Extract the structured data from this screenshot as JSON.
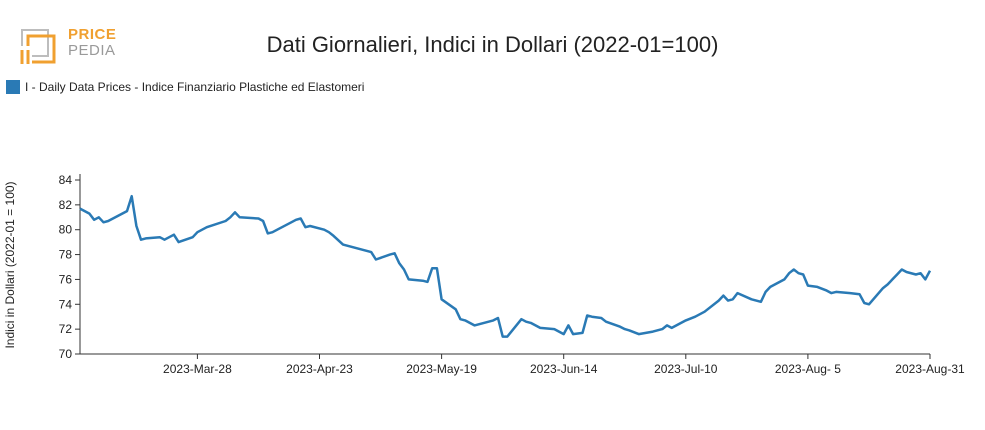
{
  "logo": {
    "line1": "PRICE",
    "line2": "PEDIA"
  },
  "colors": {
    "series": "#2a7ab5",
    "logo_orange": "#f0a030",
    "logo_gray": "#9a9a9a"
  },
  "chart_data": {
    "type": "line",
    "title": "Dati Giornalieri, Indici in Dollari (2022-01=100)",
    "xlabel": "",
    "ylabel": "Indici in Dollari (2022-01 = 100)",
    "ylim": [
      70,
      84
    ],
    "y_ticks": [
      70,
      72,
      74,
      76,
      78,
      80,
      82,
      84
    ],
    "x_range": [
      "2023-03-03",
      "2023-08-31"
    ],
    "x_ticks": [
      {
        "date": "2023-03-28",
        "label": "2023-Mar-28"
      },
      {
        "date": "2023-04-23",
        "label": "2023-Apr-23"
      },
      {
        "date": "2023-05-19",
        "label": "2023-May-19"
      },
      {
        "date": "2023-06-14",
        "label": "2023-Jun-14"
      },
      {
        "date": "2023-07-10",
        "label": "2023-Jul-10"
      },
      {
        "date": "2023-08-05",
        "label": "2023-Aug- 5"
      },
      {
        "date": "2023-08-31",
        "label": "2023-Aug-31"
      }
    ],
    "grid": false,
    "legend_position": "top-left",
    "series": [
      {
        "name": "I - Daily Data Prices - Indice Finanziario Plastiche ed Elastomeri",
        "points": [
          [
            "2023-03-03",
            81.7
          ],
          [
            "2023-03-05",
            81.3
          ],
          [
            "2023-03-06",
            80.8
          ],
          [
            "2023-03-07",
            81.0
          ],
          [
            "2023-03-08",
            80.6
          ],
          [
            "2023-03-09",
            80.7
          ],
          [
            "2023-03-13",
            81.5
          ],
          [
            "2023-03-14",
            82.7
          ],
          [
            "2023-03-15",
            80.3
          ],
          [
            "2023-03-16",
            79.2
          ],
          [
            "2023-03-17",
            79.3
          ],
          [
            "2023-03-20",
            79.4
          ],
          [
            "2023-03-21",
            79.2
          ],
          [
            "2023-03-23",
            79.6
          ],
          [
            "2023-03-24",
            79.0
          ],
          [
            "2023-03-27",
            79.4
          ],
          [
            "2023-03-28",
            79.8
          ],
          [
            "2023-03-30",
            80.2
          ],
          [
            "2023-04-03",
            80.7
          ],
          [
            "2023-04-04",
            81.0
          ],
          [
            "2023-04-05",
            81.4
          ],
          [
            "2023-04-06",
            81.0
          ],
          [
            "2023-04-10",
            80.9
          ],
          [
            "2023-04-11",
            80.7
          ],
          [
            "2023-04-12",
            79.7
          ],
          [
            "2023-04-13",
            79.8
          ],
          [
            "2023-04-14",
            80.0
          ],
          [
            "2023-04-17",
            80.6
          ],
          [
            "2023-04-18",
            80.8
          ],
          [
            "2023-04-19",
            80.9
          ],
          [
            "2023-04-20",
            80.2
          ],
          [
            "2023-04-21",
            80.3
          ],
          [
            "2023-04-24",
            80.0
          ],
          [
            "2023-04-25",
            79.8
          ],
          [
            "2023-04-26",
            79.5
          ],
          [
            "2023-04-28",
            78.8
          ],
          [
            "2023-05-03",
            78.3
          ],
          [
            "2023-05-04",
            78.2
          ],
          [
            "2023-05-05",
            77.6
          ],
          [
            "2023-05-08",
            78.0
          ],
          [
            "2023-05-09",
            78.1
          ],
          [
            "2023-05-10",
            77.3
          ],
          [
            "2023-05-11",
            76.8
          ],
          [
            "2023-05-12",
            76.0
          ],
          [
            "2023-05-15",
            75.9
          ],
          [
            "2023-05-16",
            75.8
          ],
          [
            "2023-05-17",
            76.9
          ],
          [
            "2023-05-18",
            76.9
          ],
          [
            "2023-05-19",
            74.4
          ],
          [
            "2023-05-22",
            73.6
          ],
          [
            "2023-05-23",
            72.8
          ],
          [
            "2023-05-24",
            72.7
          ],
          [
            "2023-05-26",
            72.3
          ],
          [
            "2023-05-29",
            72.6
          ],
          [
            "2023-05-30",
            72.7
          ],
          [
            "2023-05-31",
            72.9
          ],
          [
            "2023-06-01",
            71.4
          ],
          [
            "2023-06-02",
            71.4
          ],
          [
            "2023-06-05",
            72.8
          ],
          [
            "2023-06-06",
            72.6
          ],
          [
            "2023-06-07",
            72.5
          ],
          [
            "2023-06-08",
            72.3
          ],
          [
            "2023-06-09",
            72.1
          ],
          [
            "2023-06-12",
            72.0
          ],
          [
            "2023-06-13",
            71.8
          ],
          [
            "2023-06-14",
            71.6
          ],
          [
            "2023-06-15",
            72.3
          ],
          [
            "2023-06-16",
            71.6
          ],
          [
            "2023-06-18",
            71.7
          ],
          [
            "2023-06-19",
            73.1
          ],
          [
            "2023-06-20",
            73.0
          ],
          [
            "2023-06-22",
            72.9
          ],
          [
            "2023-06-23",
            72.6
          ],
          [
            "2023-06-26",
            72.2
          ],
          [
            "2023-06-27",
            72.0
          ],
          [
            "2023-06-28",
            71.9
          ],
          [
            "2023-06-30",
            71.6
          ],
          [
            "2023-07-03",
            71.8
          ],
          [
            "2023-07-05",
            72.0
          ],
          [
            "2023-07-06",
            72.3
          ],
          [
            "2023-07-07",
            72.1
          ],
          [
            "2023-07-08",
            72.3
          ],
          [
            "2023-07-10",
            72.7
          ],
          [
            "2023-07-12",
            73.0
          ],
          [
            "2023-07-13",
            73.2
          ],
          [
            "2023-07-14",
            73.4
          ],
          [
            "2023-07-17",
            74.3
          ],
          [
            "2023-07-18",
            74.7
          ],
          [
            "2023-07-19",
            74.3
          ],
          [
            "2023-07-20",
            74.4
          ],
          [
            "2023-07-21",
            74.9
          ],
          [
            "2023-07-24",
            74.4
          ],
          [
            "2023-07-26",
            74.2
          ],
          [
            "2023-07-27",
            75.0
          ],
          [
            "2023-07-28",
            75.4
          ],
          [
            "2023-07-31",
            76.0
          ],
          [
            "2023-08-01",
            76.5
          ],
          [
            "2023-08-02",
            76.8
          ],
          [
            "2023-08-03",
            76.5
          ],
          [
            "2023-08-04",
            76.4
          ],
          [
            "2023-08-05",
            75.5
          ],
          [
            "2023-08-07",
            75.4
          ],
          [
            "2023-08-09",
            75.1
          ],
          [
            "2023-08-10",
            74.9
          ],
          [
            "2023-08-11",
            75.0
          ],
          [
            "2023-08-14",
            74.9
          ],
          [
            "2023-08-16",
            74.8
          ],
          [
            "2023-08-17",
            74.1
          ],
          [
            "2023-08-18",
            74.0
          ],
          [
            "2023-08-21",
            75.3
          ],
          [
            "2023-08-22",
            75.6
          ],
          [
            "2023-08-23",
            76.0
          ],
          [
            "2023-08-24",
            76.4
          ],
          [
            "2023-08-25",
            76.8
          ],
          [
            "2023-08-26",
            76.6
          ],
          [
            "2023-08-28",
            76.4
          ],
          [
            "2023-08-29",
            76.5
          ],
          [
            "2023-08-30",
            76.0
          ],
          [
            "2023-08-31",
            76.7
          ]
        ]
      }
    ]
  }
}
